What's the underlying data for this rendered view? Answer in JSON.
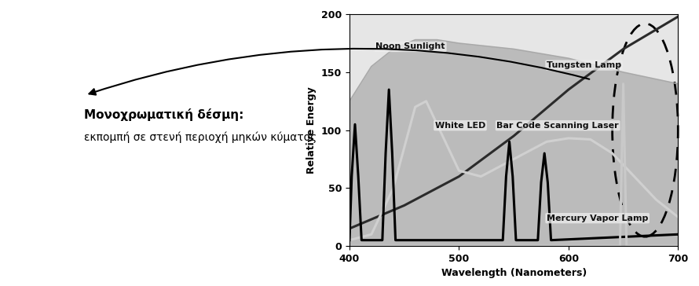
{
  "chart_data": {
    "type": "line",
    "x_label": "Wavelength (Nanometers)",
    "y_label": "Relative Energy",
    "xlim": [
      400,
      700
    ],
    "xticks": [
      400,
      500,
      600,
      700
    ],
    "ylim": [
      0,
      200
    ],
    "yticks": [
      0,
      50,
      100,
      150,
      200
    ],
    "grid": false,
    "annotations": [
      {
        "text": "Μονοχρωματική δέσμη:"
      },
      {
        "text": "εκπομπή σε στενή περιοχή μηκών κύματος"
      }
    ],
    "series": [
      {
        "name": "Noon Sunlight",
        "type": "area",
        "color": "#a9a9a9",
        "x": [
          400,
          420,
          440,
          460,
          480,
          500,
          550,
          600,
          650,
          700
        ],
        "values": [
          125,
          155,
          170,
          178,
          178,
          175,
          170,
          162,
          150,
          140
        ]
      },
      {
        "name": "Tungsten Lamp",
        "type": "line",
        "color": "#2b2b2b",
        "x": [
          400,
          450,
          500,
          550,
          600,
          650,
          700
        ],
        "values": [
          15,
          35,
          60,
          95,
          135,
          170,
          198
        ]
      },
      {
        "name": "White LED",
        "type": "line",
        "color": "#d0d0d0",
        "x": [
          400,
          420,
          440,
          460,
          470,
          480,
          500,
          520,
          550,
          580,
          600,
          620,
          640,
          660,
          680,
          700
        ],
        "values": [
          5,
          10,
          50,
          120,
          125,
          105,
          65,
          60,
          75,
          90,
          93,
          92,
          80,
          60,
          40,
          25
        ]
      },
      {
        "name": "Mercury Vapor Lamp",
        "type": "line",
        "color": "#000000",
        "x": [
          400,
          402,
          405,
          408,
          411,
          430,
          433,
          436,
          439,
          442,
          540,
          543,
          546,
          549,
          552,
          572,
          575,
          578,
          581,
          584,
          700
        ],
        "values": [
          5,
          60,
          105,
          60,
          5,
          5,
          80,
          135,
          80,
          5,
          5,
          60,
          90,
          60,
          5,
          5,
          55,
          80,
          55,
          5,
          10
        ]
      },
      {
        "name": "Bar Code Scanning Laser",
        "type": "line",
        "color": "#c9c9c9",
        "x": [
          400,
          647,
          650,
          653,
          700
        ],
        "values": [
          0,
          0,
          140,
          0,
          0
        ]
      }
    ]
  }
}
